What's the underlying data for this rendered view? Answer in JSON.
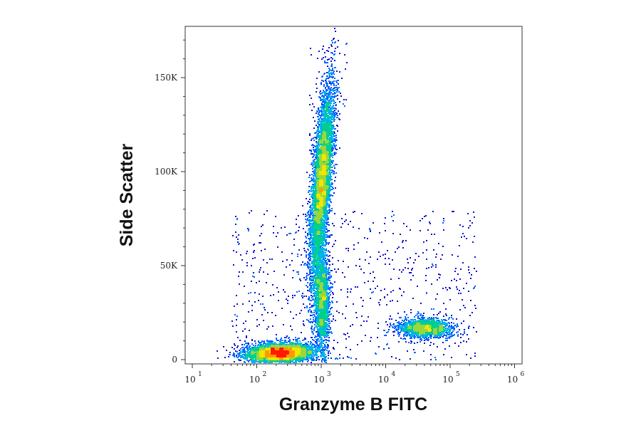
{
  "chart_data": {
    "type": "scatter",
    "subtype": "flow-cytometry-density-dot-plot",
    "xlabel": "Granzyme B FITC",
    "ylabel": "Side Scatter",
    "x_scale": "log",
    "xlim": [
      10,
      1000000
    ],
    "ylim": [
      -4000,
      178000
    ],
    "x_ticks": [
      {
        "value": 10,
        "base": "10",
        "exp": "1"
      },
      {
        "value": 100,
        "base": "10",
        "exp": "2"
      },
      {
        "value": 1000,
        "base": "10",
        "exp": "3"
      },
      {
        "value": 10000,
        "base": "10",
        "exp": "4"
      },
      {
        "value": 100000,
        "base": "10",
        "exp": "5"
      },
      {
        "value": 1000000,
        "base": "10",
        "exp": "6"
      }
    ],
    "y_ticks": [
      {
        "value": 0,
        "label": "0"
      },
      {
        "value": 50000,
        "label": "50K"
      },
      {
        "value": 100000,
        "label": "100K"
      },
      {
        "value": 150000,
        "label": "150K"
      }
    ],
    "density_colors": [
      "#1010d0",
      "#0066ff",
      "#00b4e6",
      "#00d08c",
      "#9ad83a",
      "#f2e600",
      "#ff9a00",
      "#ff1a00"
    ],
    "grid": false,
    "legend": "none",
    "populations": [
      {
        "description": "granular high-SSC cluster",
        "x_center_log10": 3.0,
        "y_center": 95000,
        "x_spread_log10": 0.07,
        "y_spread": 25000,
        "tilt_log10_per_100k": 0.22,
        "weight": 0.36
      },
      {
        "description": "dim low-SSC cluster",
        "x_center_log10": 2.35,
        "y_center": 4000,
        "x_spread_log10": 0.25,
        "y_spread": 2500,
        "tilt_log10_per_100k": 1.4,
        "weight": 0.28
      },
      {
        "description": "connecting stream",
        "x_center_log10": 3.0,
        "y_center": 32000,
        "x_spread_log10": 0.06,
        "y_spread": 14000,
        "tilt_log10_per_100k": 0.0,
        "weight": 0.12
      },
      {
        "description": "Granzyme B positive population",
        "x_center_log10": 4.6,
        "y_center": 17000,
        "x_spread_log10": 0.2,
        "y_spread": 2600,
        "tilt_log10_per_100k": 0.0,
        "weight": 0.1
      }
    ]
  }
}
